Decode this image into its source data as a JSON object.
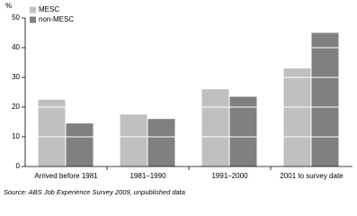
{
  "chart_data": {
    "type": "bar",
    "ylabel": "%",
    "categories": [
      "Arrived before 1981",
      "1981–1990",
      "1991–2000",
      "2001 to survey date"
    ],
    "series": [
      {
        "name": "MESC",
        "color": "#c0c0c0",
        "values": [
          22.5,
          17.5,
          26,
          33
        ]
      },
      {
        "name": "non-MESC",
        "color": "#808080",
        "values": [
          14.5,
          16,
          23.5,
          45
        ]
      }
    ],
    "ylim": [
      0,
      50
    ],
    "yticks": [
      0,
      10,
      20,
      30,
      40,
      50
    ],
    "grid": true,
    "grid_color": "#ffffff",
    "legend": "upper left",
    "source": "Source: ABS Job Experience Survey 2009, unpublished data"
  }
}
